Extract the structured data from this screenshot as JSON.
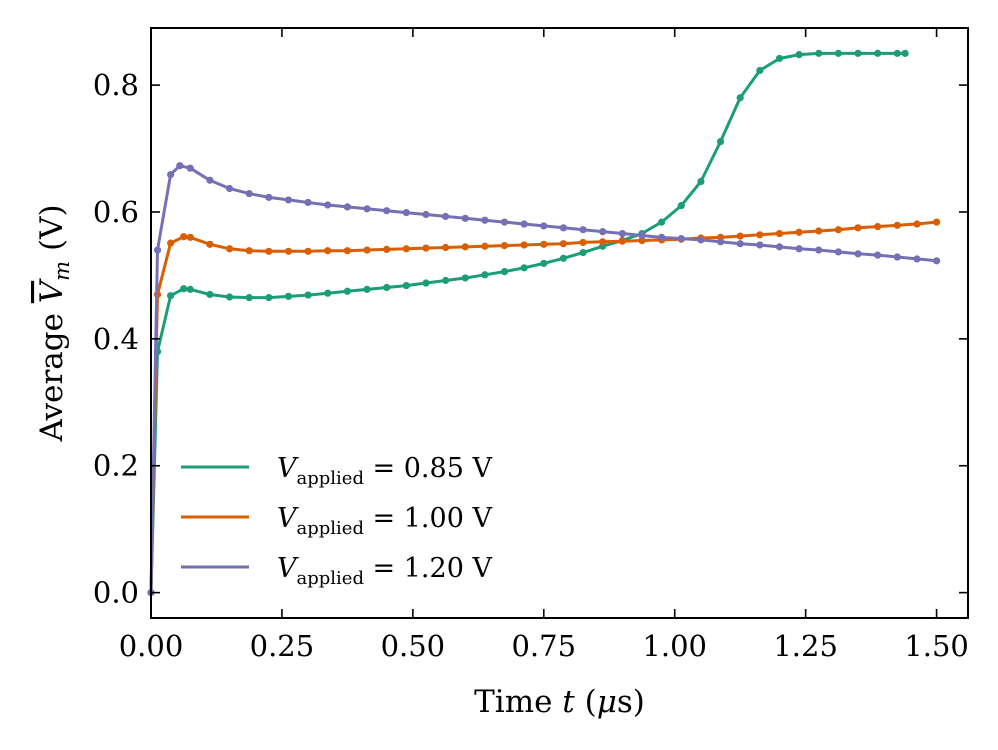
{
  "chart_data": {
    "type": "line",
    "title": "",
    "xlabel_prefix": "Time ",
    "xlabel_var": "t",
    "xlabel_unit_open": " (",
    "xlabel_mu": "μ",
    "xlabel_unit_rest": "s)",
    "ylabel_prefix": "Average ",
    "ylabel_var": "V",
    "ylabel_sub": "m",
    "ylabel_unit": " (V)",
    "xlim": [
      0,
      1.56
    ],
    "ylim": [
      -0.04,
      0.89
    ],
    "xticks": [
      "0.00",
      "0.25",
      "0.50",
      "0.75",
      "1.00",
      "1.25",
      "1.50"
    ],
    "yticks": [
      "0.0",
      "0.2",
      "0.4",
      "0.6",
      "0.8"
    ],
    "legend_position": "lower-left",
    "series": [
      {
        "name": "V_applied = 0.85 V",
        "label_var": "V",
        "label_sub": "applied",
        "label_rest": " = 0.85 V",
        "color": "#1b9e77",
        "x": [
          0.0,
          0.0125,
          0.0375,
          0.0625,
          0.075,
          0.1125,
          0.15,
          0.1875,
          0.225,
          0.2625,
          0.3,
          0.3375,
          0.375,
          0.4125,
          0.45,
          0.4875,
          0.525,
          0.5625,
          0.6,
          0.6375,
          0.675,
          0.7125,
          0.75,
          0.7875,
          0.825,
          0.8625,
          0.9,
          0.9375,
          0.975,
          1.0125,
          1.05,
          1.0875,
          1.125,
          1.1625,
          1.2,
          1.2375,
          1.275,
          1.3125,
          1.35,
          1.3875,
          1.425,
          1.44
        ],
        "y": [
          0.0,
          0.38,
          0.468,
          0.479,
          0.478,
          0.47,
          0.466,
          0.465,
          0.465,
          0.467,
          0.469,
          0.472,
          0.475,
          0.478,
          0.481,
          0.484,
          0.488,
          0.492,
          0.496,
          0.501,
          0.506,
          0.512,
          0.519,
          0.527,
          0.536,
          0.546,
          0.555,
          0.566,
          0.584,
          0.61,
          0.648,
          0.711,
          0.78,
          0.823,
          0.842,
          0.848,
          0.85,
          0.85,
          0.85,
          0.85,
          0.85,
          0.85
        ]
      },
      {
        "name": "V_applied = 1.00 V",
        "label_var": "V",
        "label_sub": "applied",
        "label_rest": " = 1.00 V",
        "color": "#d95f02",
        "x": [
          0.0,
          0.0125,
          0.0375,
          0.0625,
          0.075,
          0.1125,
          0.15,
          0.1875,
          0.225,
          0.2625,
          0.3,
          0.3375,
          0.375,
          0.4125,
          0.45,
          0.4875,
          0.525,
          0.5625,
          0.6,
          0.6375,
          0.675,
          0.7125,
          0.75,
          0.7875,
          0.825,
          0.8625,
          0.9,
          0.9375,
          0.975,
          1.0125,
          1.05,
          1.0875,
          1.125,
          1.1625,
          1.2,
          1.2375,
          1.275,
          1.3125,
          1.35,
          1.3875,
          1.425,
          1.4625,
          1.5
        ],
        "y": [
          0.0,
          0.47,
          0.551,
          0.561,
          0.56,
          0.549,
          0.542,
          0.539,
          0.538,
          0.538,
          0.538,
          0.539,
          0.539,
          0.54,
          0.541,
          0.542,
          0.543,
          0.544,
          0.545,
          0.546,
          0.547,
          0.548,
          0.549,
          0.55,
          0.552,
          0.553,
          0.554,
          0.555,
          0.556,
          0.557,
          0.559,
          0.56,
          0.562,
          0.564,
          0.566,
          0.568,
          0.57,
          0.572,
          0.575,
          0.577,
          0.579,
          0.581,
          0.584
        ]
      },
      {
        "name": "V_applied = 1.20 V",
        "label_var": "V",
        "label_sub": "applied",
        "label_rest": " = 1.20 V",
        "color": "#7570b3",
        "x": [
          0.0,
          0.0125,
          0.0375,
          0.055,
          0.075,
          0.1125,
          0.15,
          0.1875,
          0.225,
          0.2625,
          0.3,
          0.3375,
          0.375,
          0.4125,
          0.45,
          0.4875,
          0.525,
          0.5625,
          0.6,
          0.6375,
          0.675,
          0.7125,
          0.75,
          0.7875,
          0.825,
          0.8625,
          0.9,
          0.9375,
          0.975,
          1.0125,
          1.05,
          1.0875,
          1.125,
          1.1625,
          1.2,
          1.2375,
          1.275,
          1.3125,
          1.35,
          1.3875,
          1.425,
          1.4625,
          1.5
        ],
        "y": [
          0.0,
          0.54,
          0.659,
          0.673,
          0.669,
          0.65,
          0.637,
          0.629,
          0.623,
          0.619,
          0.615,
          0.611,
          0.608,
          0.605,
          0.602,
          0.599,
          0.596,
          0.593,
          0.59,
          0.587,
          0.584,
          0.581,
          0.578,
          0.575,
          0.572,
          0.569,
          0.566,
          0.563,
          0.56,
          0.558,
          0.556,
          0.553,
          0.55,
          0.548,
          0.545,
          0.542,
          0.54,
          0.537,
          0.534,
          0.532,
          0.529,
          0.526,
          0.523
        ]
      }
    ]
  }
}
